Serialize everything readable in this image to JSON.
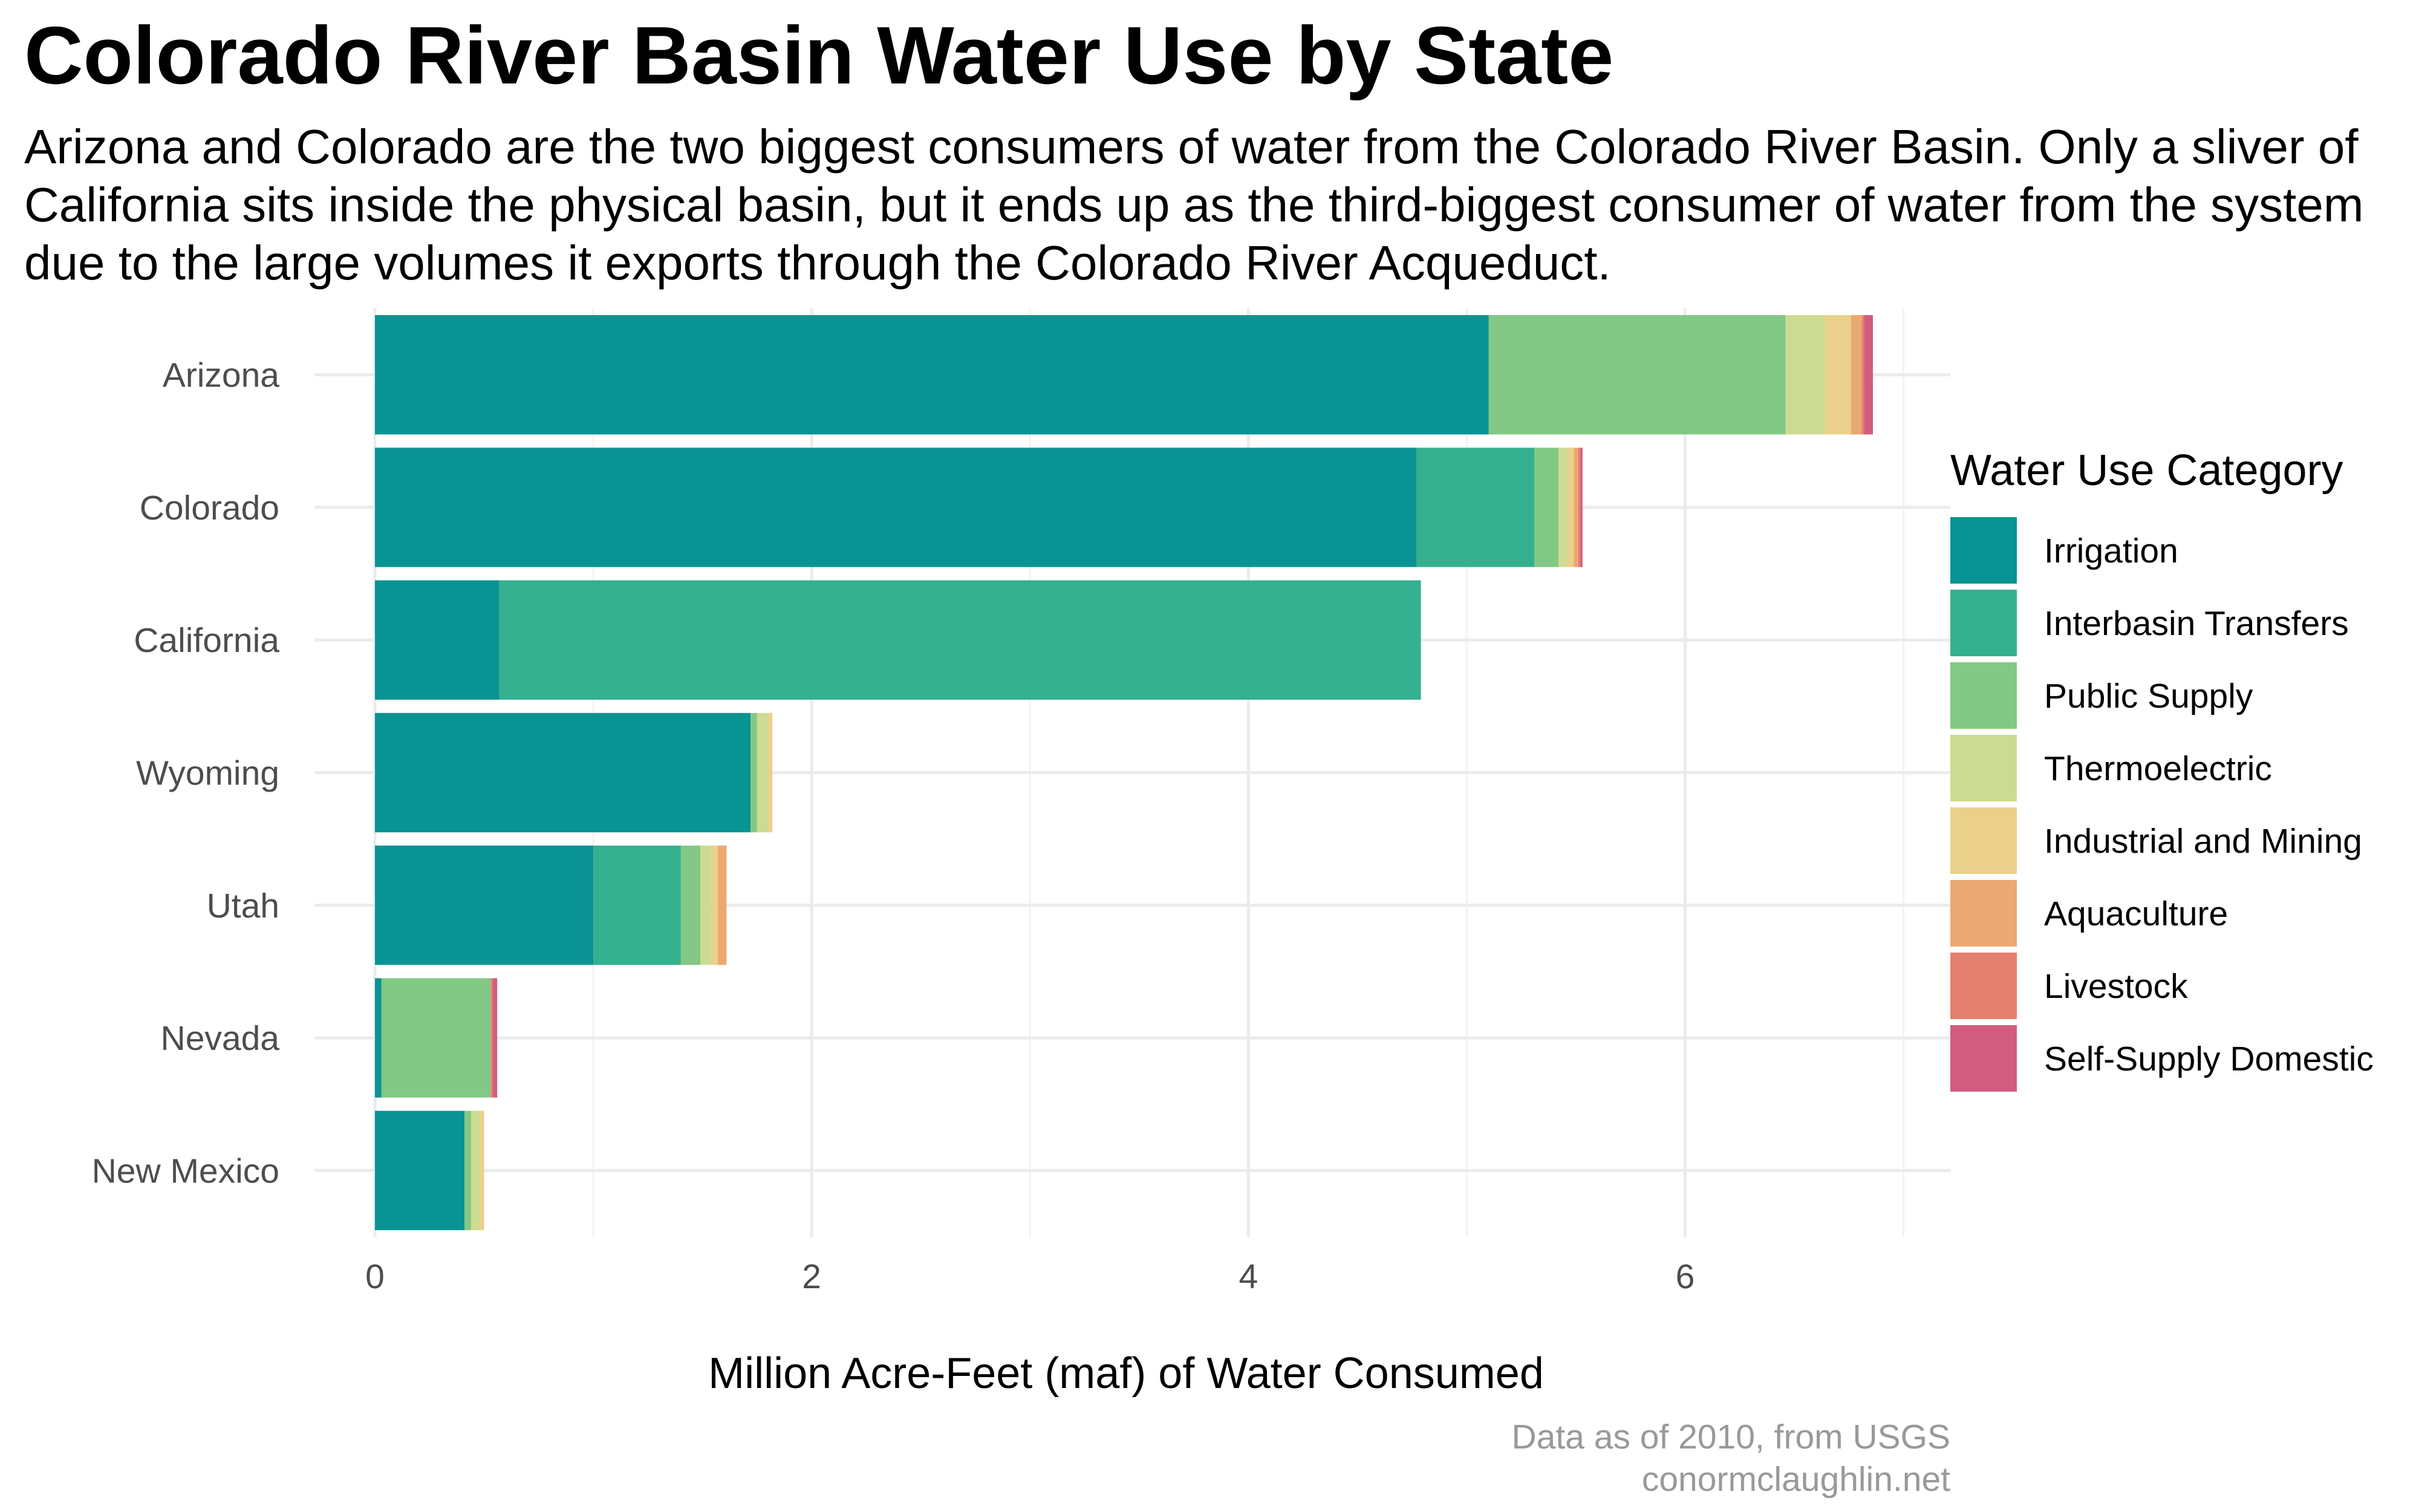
{
  "title": "Colorado River Basin Water Use by State",
  "subtitle": "Arizona and Colorado are the two biggest consumers of water from the Colorado River Basin. Only a sliver of California sits inside the physical basin, but it ends up as the third-biggest consumer of water from the system due to the large volumes it exports through the Colorado River Acqueduct.",
  "caption": [
    "Data as of 2010, from USGS",
    "conormclaughlin.net"
  ],
  "colors": {
    "Irrigation": "#0a9393",
    "Interbasin Transfers": "#35b08f",
    "Public Supply": "#83c884",
    "Thermoelectric": "#ccdb91",
    "Industrial and Mining": "#ebd08c",
    "Aquaculture": "#eaa872",
    "Livestock": "#e5806e",
    "Self-Supply Domestic": "#d15c80"
  },
  "chart_data": {
    "type": "bar",
    "orientation": "horizontal",
    "stacked": true,
    "categories": [
      "Arizona",
      "Colorado",
      "California",
      "Wyoming",
      "Utah",
      "Nevada",
      "New Mexico"
    ],
    "series": [
      {
        "name": "Irrigation",
        "values": [
          5.1,
          4.77,
          0.57,
          1.72,
          1.0,
          0.03,
          0.41
        ]
      },
      {
        "name": "Interbasin Transfers",
        "values": [
          0.0,
          0.54,
          4.22,
          0.0,
          0.4,
          0.0,
          0.0
        ]
      },
      {
        "name": "Public Supply",
        "values": [
          1.36,
          0.11,
          0.0,
          0.03,
          0.09,
          0.5,
          0.03
        ]
      },
      {
        "name": "Thermoelectric",
        "values": [
          0.18,
          0.04,
          0.0,
          0.05,
          0.05,
          0.0,
          0.04
        ]
      },
      {
        "name": "Industrial and Mining",
        "values": [
          0.12,
          0.03,
          0.0,
          0.02,
          0.03,
          0.0,
          0.02
        ]
      },
      {
        "name": "Aquaculture",
        "values": [
          0.05,
          0.02,
          0.0,
          0.0,
          0.04,
          0.0,
          0.0
        ]
      },
      {
        "name": "Livestock",
        "values": [
          0.01,
          0.01,
          0.0,
          0.0,
          0.0,
          0.01,
          0.0
        ]
      },
      {
        "name": "Self-Supply Domestic",
        "values": [
          0.04,
          0.01,
          0.0,
          0.0,
          0.0,
          0.02,
          0.0
        ]
      }
    ],
    "xlabel": "Million Acre-Feet (maf) of Water Consumed",
    "ylabel": "",
    "xlim": [
      0,
      7.2
    ],
    "xticks": [
      0,
      2,
      4,
      6
    ],
    "grid": true,
    "legend": {
      "title": "Water Use Category",
      "position": "right"
    }
  }
}
